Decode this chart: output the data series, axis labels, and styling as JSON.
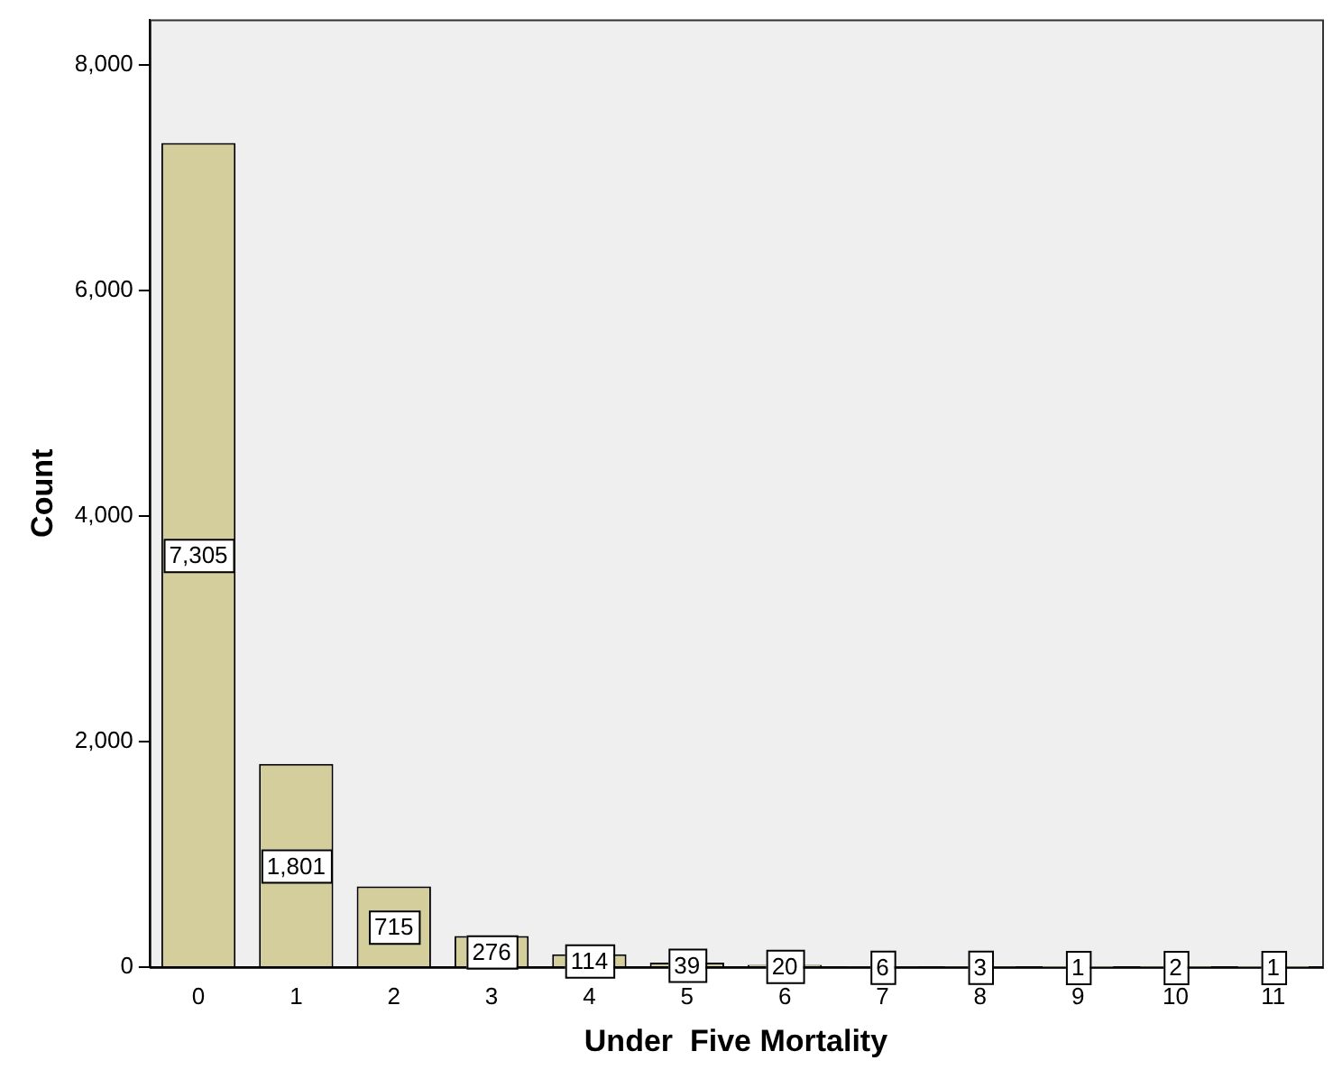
{
  "chart_data": {
    "type": "bar",
    "xlabel": "Under  Five Mortality",
    "ylabel": "Count",
    "categories": [
      "0",
      "1",
      "2",
      "3",
      "4",
      "5",
      "6",
      "7",
      "8",
      "9",
      "10",
      "11"
    ],
    "values": [
      7305,
      1801,
      715,
      276,
      114,
      39,
      20,
      6,
      3,
      1,
      2,
      1
    ],
    "value_labels": [
      "7,305",
      "1,801",
      "715",
      "276",
      "114",
      "39",
      "20",
      "6",
      "3",
      "1",
      "2",
      "1"
    ],
    "color": "#d3ce9b",
    "ylim": [
      0,
      8400
    ],
    "yticks": [
      {
        "value": 0,
        "label": "0"
      },
      {
        "value": 2000,
        "label": "2,000"
      },
      {
        "value": 4000,
        "label": "4,000"
      },
      {
        "value": 6000,
        "label": "6,000"
      },
      {
        "value": 8000,
        "label": "8,000"
      }
    ],
    "grid": false,
    "legend": false
  }
}
